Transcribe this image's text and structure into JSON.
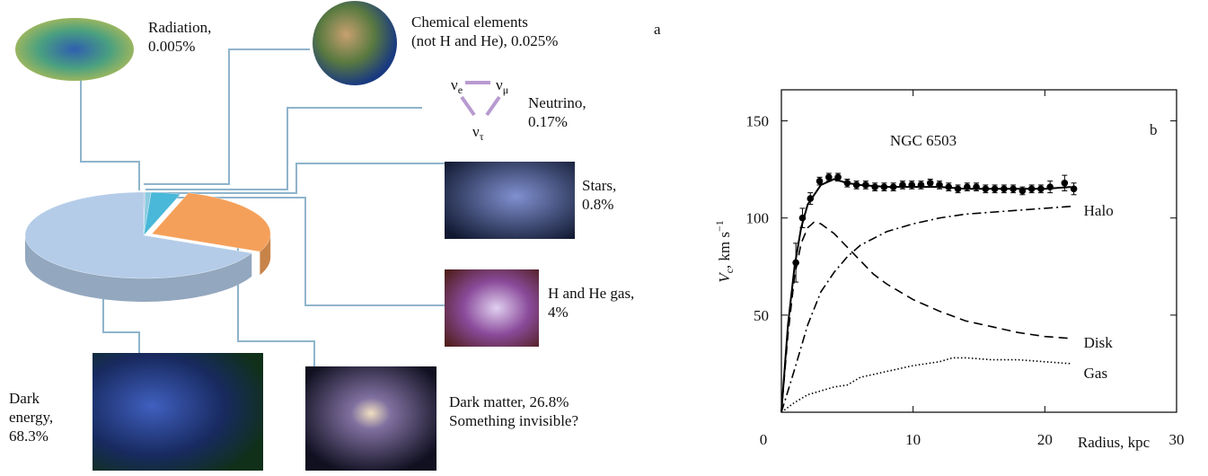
{
  "chart_data": [
    {
      "type": "pie",
      "panel_label": "a",
      "categories": [
        "Radiation,",
        "Chemical elements\n(not H and He),",
        "Neutrino,",
        "Stars,",
        "H and He gas,",
        "Dark matter,",
        "Dark\nenergy,"
      ],
      "values": [
        0.005,
        0.025,
        0.17,
        0.8,
        4,
        26.8,
        68.3
      ],
      "value_labels": [
        "0.005%",
        "0.025%",
        "0.17%",
        "0.8%",
        "4%",
        "26.8%",
        "68.3%"
      ],
      "colors": [
        "#d8c8e0",
        "#c0a0c8",
        "#9fb0d8",
        "#8ccbe0",
        "#4ab8d8",
        "#f5a05a",
        "#b4cce8"
      ],
      "annotation": "Something invisible?",
      "neutrino_flavors": [
        {
          "base": "ν",
          "sub": "e"
        },
        {
          "base": "ν",
          "sub": "μ"
        },
        {
          "base": "ν",
          "sub": "τ"
        }
      ]
    },
    {
      "type": "line",
      "panel_label": "b",
      "title": "NGC 6503",
      "xlabel": "Radius, kpc",
      "ylabel": {
        "main": "V",
        "sub": "c",
        "unit": ", km s",
        "sup": "−1"
      },
      "xlim": [
        0,
        30
      ],
      "xticks": [
        0,
        10,
        20,
        30
      ],
      "ylim": [
        0,
        166
      ],
      "yticks": [
        50,
        100,
        150
      ],
      "series": [
        {
          "name": "Halo",
          "dash": "dashdot",
          "color": "#000",
          "x": [
            0,
            1,
            2,
            3,
            4,
            5,
            6,
            8,
            10,
            12,
            14,
            16,
            18,
            20,
            22
          ],
          "values": [
            0,
            22,
            45,
            62,
            72,
            80,
            86,
            93,
            97,
            100,
            102,
            103,
            104,
            105,
            106
          ]
        },
        {
          "name": "Disk",
          "dash": "dashed",
          "color": "#000",
          "x": [
            0,
            0.5,
            1,
            1.5,
            2,
            2.5,
            3,
            4,
            5,
            6,
            7,
            8,
            10,
            12,
            14,
            16,
            18,
            20,
            22
          ],
          "values": [
            0,
            40,
            70,
            87,
            95,
            98,
            97,
            92,
            85,
            78,
            71,
            66,
            58,
            52,
            47,
            44,
            41,
            39,
            38
          ]
        },
        {
          "name": "Gas",
          "dash": "dotted",
          "color": "#000",
          "x": [
            0,
            1,
            2,
            3,
            4,
            5,
            6,
            8,
            10,
            12,
            13,
            14,
            16,
            18,
            20,
            22
          ],
          "values": [
            0,
            5,
            9,
            11,
            13,
            14,
            18,
            21,
            24,
            26,
            28,
            28,
            27,
            27,
            26,
            25
          ]
        },
        {
          "dash": "solid",
          "color": "#000",
          "x": [
            0,
            0.5,
            1,
            1.5,
            2,
            3,
            4,
            5,
            6,
            8,
            10,
            12,
            14,
            16,
            18,
            20,
            22
          ],
          "values": [
            0,
            45,
            75,
            95,
            107,
            117,
            120,
            118,
            117,
            116,
            116,
            116,
            115,
            115,
            115,
            115,
            116
          ]
        },
        {
          "marker": "circle",
          "color": "#000",
          "x": [
            1.1,
            1.6,
            2.2,
            2.9,
            3.6,
            4.3,
            5.0,
            5.7,
            6.4,
            7.1,
            7.8,
            8.5,
            9.2,
            9.9,
            10.6,
            11.3,
            12.0,
            12.7,
            13.4,
            14.1,
            14.8,
            15.5,
            16.2,
            16.9,
            17.6,
            18.3,
            19.0,
            19.7,
            20.4,
            21.5,
            22.2
          ],
          "values": [
            77,
            100,
            110,
            119,
            121,
            121,
            118,
            117,
            117,
            116,
            116,
            116,
            117,
            117,
            117,
            118,
            117,
            116,
            115,
            116,
            116,
            115,
            115,
            115,
            115,
            114,
            115,
            115,
            116,
            118,
            115
          ],
          "errors": [
            10,
            5,
            3,
            2,
            2,
            2,
            2,
            2,
            2,
            2,
            2,
            2,
            2,
            2,
            2,
            2,
            2,
            2,
            2,
            2,
            2,
            2,
            2,
            2,
            2,
            2,
            2,
            2,
            3,
            4,
            3
          ]
        }
      ]
    }
  ]
}
